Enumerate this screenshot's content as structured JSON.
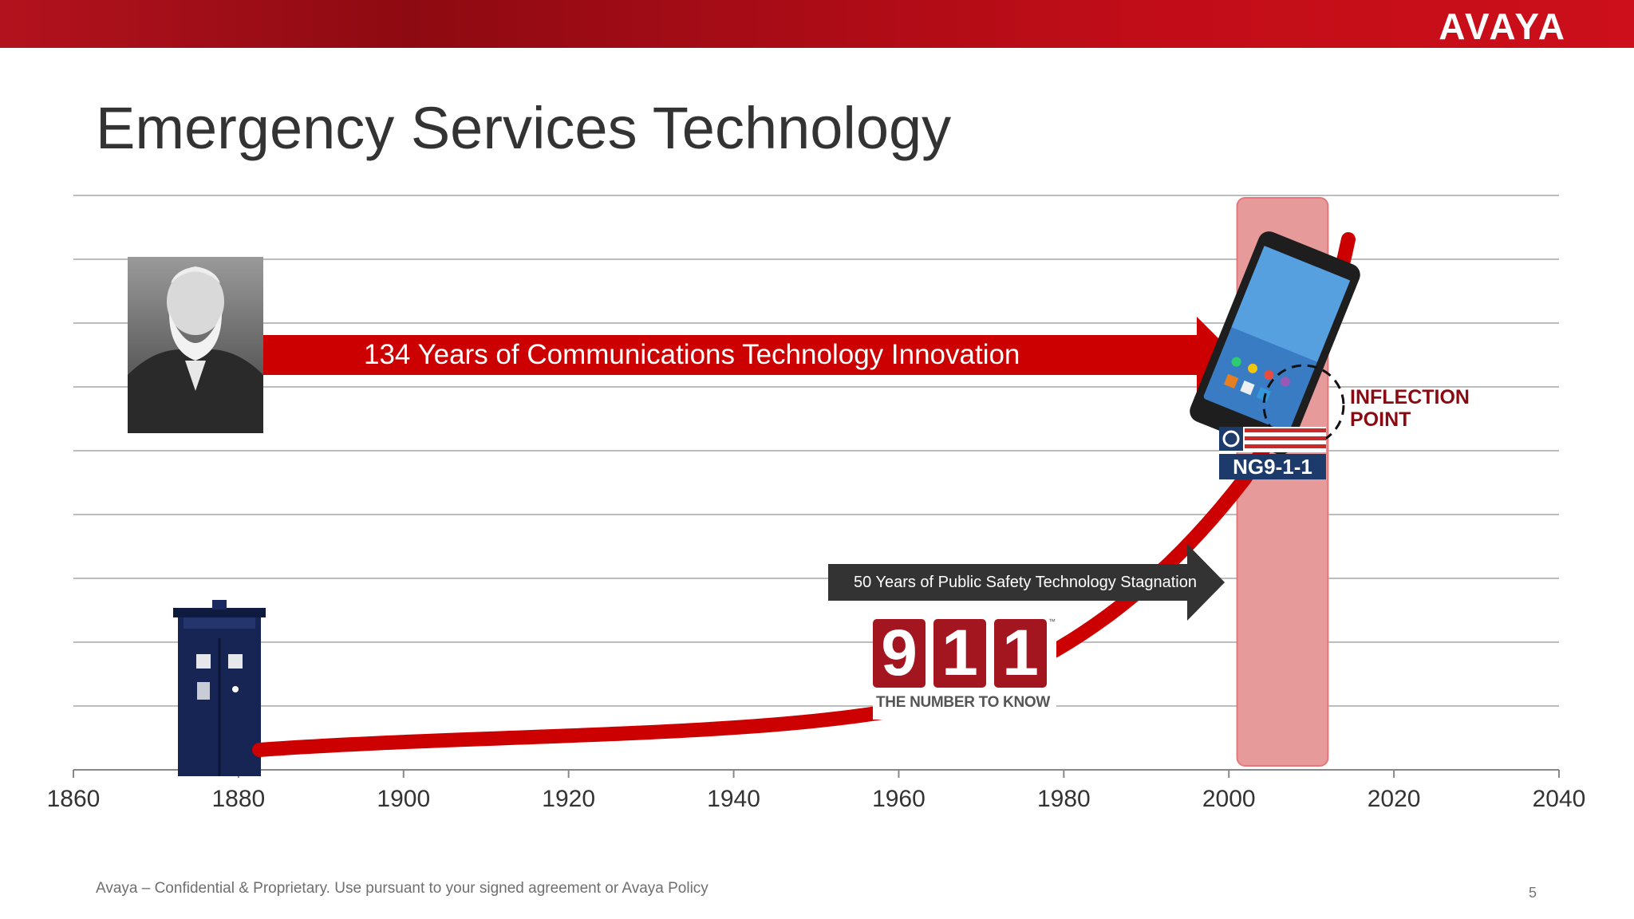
{
  "header": {
    "logo_text": "AVAYA"
  },
  "slide": {
    "title": "Emergency Services Technology",
    "banner_innovation": "134 Years of Communications Technology Innovation",
    "banner_stagnation": "50 Years of Public Safety Technology Stagnation",
    "inflection_line1": "INFLECTION",
    "inflection_line2": "POINT"
  },
  "badge_911": {
    "digit1": "9",
    "digit2": "1",
    "digit3": "1",
    "tagline": "THE NUMBER TO KNOW",
    "tm": "™"
  },
  "ng911": {
    "label": "NG9-1-1"
  },
  "timeline": {
    "ticks": [
      "1860",
      "1880",
      "1900",
      "1920",
      "1940",
      "1960",
      "1980",
      "2000",
      "2020",
      "2040"
    ],
    "highlight_years": [
      2001,
      2012
    ]
  },
  "colors": {
    "brand_red": "#cc0000",
    "dark_arrow": "#333333",
    "highlight": "#e79a9a",
    "inflection_text": "#8a0a12"
  },
  "footer": {
    "confidential": "Avaya – Confidential & Proprietary. Use pursuant to your signed agreement or Avaya Policy",
    "page_number": "5"
  }
}
